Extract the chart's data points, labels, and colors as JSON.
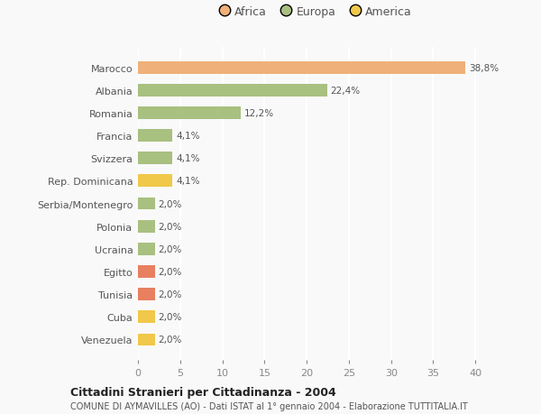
{
  "categories": [
    "Venezuela",
    "Cuba",
    "Tunisia",
    "Egitto",
    "Ucraina",
    "Polonia",
    "Serbia/Montenegro",
    "Rep. Dominicana",
    "Svizzera",
    "Francia",
    "Romania",
    "Albania",
    "Marocco"
  ],
  "values": [
    2.0,
    2.0,
    2.0,
    2.0,
    2.0,
    2.0,
    2.0,
    4.1,
    4.1,
    4.1,
    12.2,
    22.4,
    38.8
  ],
  "colors": [
    "#f0c84a",
    "#f0c84a",
    "#e88060",
    "#e88060",
    "#a8c080",
    "#a8c080",
    "#a8c080",
    "#f0c84a",
    "#a8c080",
    "#a8c080",
    "#a8c080",
    "#a8c080",
    "#f0b07a"
  ],
  "labels": [
    "2,0%",
    "2,0%",
    "2,0%",
    "2,0%",
    "2,0%",
    "2,0%",
    "2,0%",
    "4,1%",
    "4,1%",
    "4,1%",
    "12,2%",
    "22,4%",
    "38,8%"
  ],
  "legend": [
    {
      "label": "Africa",
      "color": "#f0b07a"
    },
    {
      "label": "Europa",
      "color": "#a8c080"
    },
    {
      "label": "America",
      "color": "#f0c84a"
    }
  ],
  "xlim": [
    0,
    42
  ],
  "xticks": [
    0,
    5,
    10,
    15,
    20,
    25,
    30,
    35,
    40
  ],
  "title1": "Cittadini Stranieri per Cittadinanza - 2004",
  "title2": "COMUNE DI AYMAVILLES (AO) - Dati ISTAT al 1° gennaio 2004 - Elaborazione TUTTITALIA.IT",
  "background_color": "#f9f9f9",
  "grid_color": "#ffffff",
  "bar_height": 0.55,
  "label_fontsize": 7.5,
  "ytick_fontsize": 8,
  "xtick_fontsize": 8
}
